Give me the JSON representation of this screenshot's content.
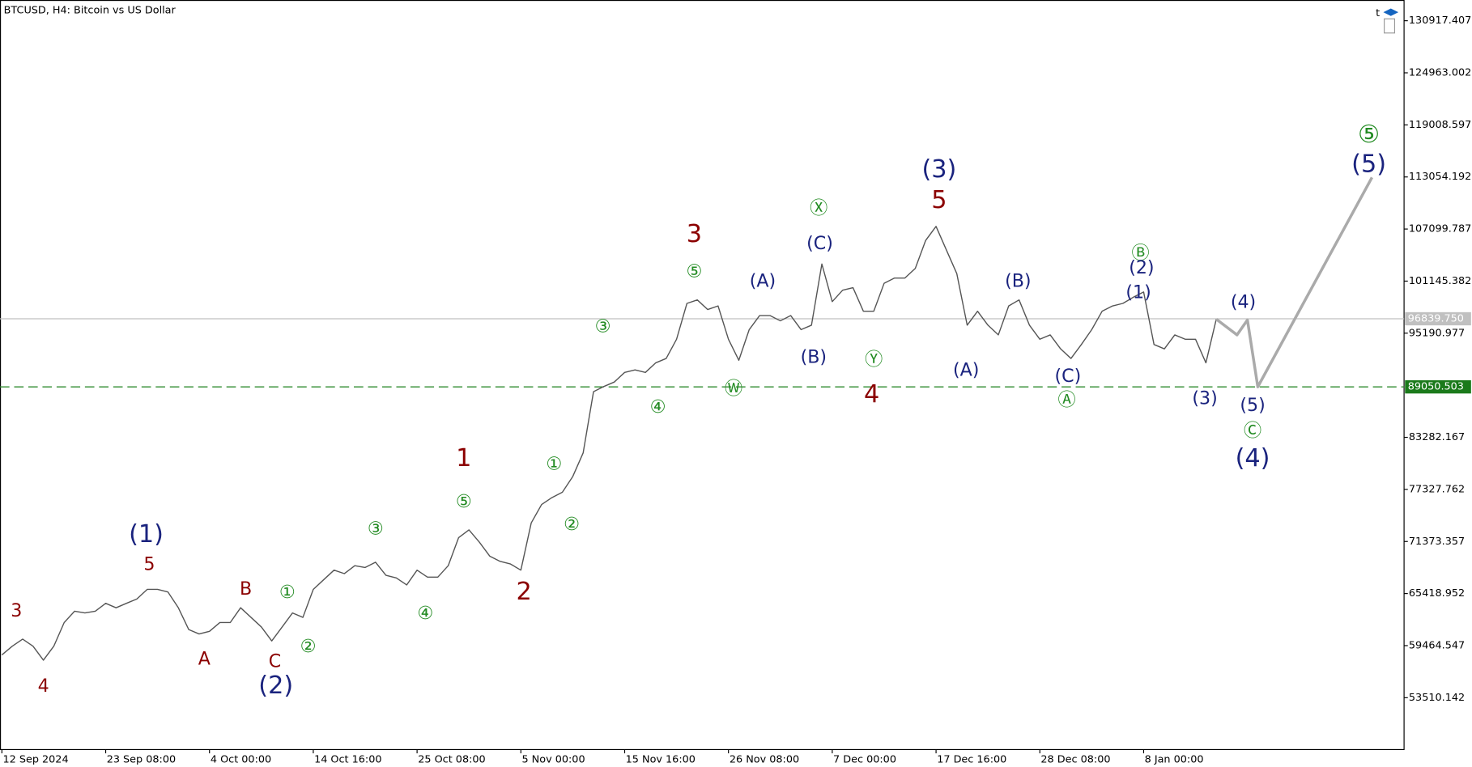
{
  "chart_data": {
    "type": "line",
    "title": "BTCUSD, H4:  Bitcoin vs US Dollar",
    "toolbar_text": "t",
    "xlim": [
      -0.182,
      135.09
    ],
    "ylim": [
      47580,
      133289
    ],
    "xticks": [
      {
        "value": 0,
        "label": "12 Sep 2024"
      },
      {
        "value": 10,
        "label": "23 Sep 08:00"
      },
      {
        "value": 20,
        "label": "4 Oct 00:00"
      },
      {
        "value": 30,
        "label": "14 Oct 16:00"
      },
      {
        "value": 40,
        "label": "25 Oct 08:00"
      },
      {
        "value": 50,
        "label": "5 Nov 00:00"
      },
      {
        "value": 60,
        "label": "15 Nov 16:00"
      },
      {
        "value": 70,
        "label": "26 Nov 08:00"
      },
      {
        "value": 80,
        "label": "7 Dec 00:00"
      },
      {
        "value": 90,
        "label": "17 Dec 16:00"
      },
      {
        "value": 100,
        "label": "28 Dec 08:00"
      },
      {
        "value": 110,
        "label": "8 Jan 00:00"
      }
    ],
    "yticks": [
      130917.407,
      124963.002,
      119008.597,
      113054.192,
      107099.787,
      101145.382,
      95190.977,
      83282.167,
      77327.762,
      71373.357,
      65418.952,
      59464.547,
      53510.142
    ],
    "current_price": {
      "value": 96839.75,
      "label": "96839.750"
    },
    "level": 89050.503,
    "series": [
      {
        "name": "BTCUSD",
        "color": "#555555",
        "x": [
          0,
          1,
          2,
          3,
          4,
          5,
          6,
          7,
          8,
          9,
          10,
          11,
          12,
          13,
          14,
          15,
          16,
          17,
          18,
          19,
          20,
          21,
          22,
          23,
          24,
          25,
          26,
          27,
          28,
          29,
          30,
          31,
          32,
          33,
          34,
          35,
          36,
          37,
          38,
          39,
          40,
          41,
          42,
          43,
          44,
          45,
          46,
          47,
          48,
          49,
          50,
          51,
          52,
          53,
          54,
          55,
          56,
          57,
          58,
          59,
          60,
          61,
          62,
          63,
          64,
          65,
          66,
          67,
          68,
          69,
          70,
          71,
          72,
          73,
          74,
          75,
          76,
          77,
          78,
          79,
          80,
          81,
          82,
          83,
          84,
          85,
          86,
          87,
          88,
          89,
          90,
          91,
          92,
          93,
          94,
          95,
          96,
          97,
          98,
          99,
          100,
          101,
          102,
          103,
          104,
          105,
          106,
          107,
          108,
          109,
          110,
          111,
          112,
          113,
          114,
          115,
          116,
          117
        ],
        "values": [
          58400,
          59400,
          60200,
          59400,
          57800,
          59400,
          62100,
          63400,
          63200,
          63400,
          64300,
          63800,
          64300,
          64800,
          65900,
          65900,
          65600,
          63800,
          61300,
          60800,
          61100,
          62100,
          62100,
          63800,
          62700,
          61600,
          60000,
          61600,
          63200,
          62700,
          65900,
          67000,
          68100,
          67700,
          68600,
          68400,
          69000,
          67500,
          67200,
          66400,
          68100,
          67300,
          67300,
          68600,
          71800,
          72700,
          71300,
          69700,
          69100,
          68800,
          68100,
          73500,
          75600,
          76400,
          77000,
          78800,
          81500,
          88500,
          89100,
          89600,
          90700,
          91000,
          90700,
          91800,
          92300,
          94500,
          98600,
          99000,
          97900,
          98300,
          94500,
          92100,
          95600,
          97200,
          97200,
          96600,
          97200,
          95600,
          96100,
          103100,
          98800,
          100100,
          100400,
          97700,
          97700,
          100900,
          101500,
          101500,
          102600,
          105800,
          107400,
          104700,
          102000,
          96100,
          97700,
          96100,
          95000,
          98300,
          99000,
          96100,
          94500,
          95000,
          93400,
          92300,
          93900,
          95600,
          97700,
          98300,
          98600,
          99300,
          99900,
          93900,
          93400,
          95000,
          94500,
          94500,
          91800,
          96800
        ]
      },
      {
        "name": "Projection",
        "color": "#aaaaaa",
        "x": [
          117,
          119,
          120,
          121,
          132
        ],
        "values": [
          96800,
          95000,
          96700,
          89050,
          113000
        ]
      }
    ],
    "annotations": [
      {
        "text": "3",
        "x": 1.4,
        "y": 63400,
        "color": "#8b0000",
        "size": "medium"
      },
      {
        "text": "4",
        "x": 4.0,
        "y": 54800,
        "color": "#8b0000",
        "size": "medium"
      },
      {
        "text": "5",
        "x": 14.2,
        "y": 68700,
        "color": "#8b0000",
        "size": "medium"
      },
      {
        "text": "(1)",
        "x": 13.9,
        "y": 72100,
        "color": "#1a237e",
        "size": "large"
      },
      {
        "text": "A",
        "x": 19.5,
        "y": 57900,
        "color": "#8b0000",
        "size": "medium"
      },
      {
        "text": "B",
        "x": 23.5,
        "y": 65900,
        "color": "#8b0000",
        "size": "medium"
      },
      {
        "text": "C",
        "x": 26.3,
        "y": 57600,
        "color": "#8b0000",
        "size": "medium"
      },
      {
        "text": "(2)",
        "x": 26.4,
        "y": 54800,
        "color": "#1a237e",
        "size": "large"
      },
      {
        "text": "①",
        "x": 27.5,
        "y": 65500,
        "color": "#228b22",
        "size": "medium"
      },
      {
        "text": "②",
        "x": 29.5,
        "y": 59300,
        "color": "#228b22",
        "size": "medium"
      },
      {
        "text": "③",
        "x": 36.0,
        "y": 72800,
        "color": "#228b22",
        "size": "medium"
      },
      {
        "text": "④",
        "x": 40.8,
        "y": 63100,
        "color": "#228b22",
        "size": "medium"
      },
      {
        "text": "⑤",
        "x": 44.5,
        "y": 75900,
        "color": "#228b22",
        "size": "medium"
      },
      {
        "text": "1",
        "x": 44.5,
        "y": 80800,
        "color": "#8b0000",
        "size": "large"
      },
      {
        "text": "2",
        "x": 50.3,
        "y": 65500,
        "color": "#8b0000",
        "size": "large"
      },
      {
        "text": "①",
        "x": 53.2,
        "y": 80200,
        "color": "#228b22",
        "size": "medium"
      },
      {
        "text": "②",
        "x": 54.9,
        "y": 73300,
        "color": "#228b22",
        "size": "medium"
      },
      {
        "text": "③",
        "x": 57.9,
        "y": 95900,
        "color": "#228b22",
        "size": "medium"
      },
      {
        "text": "④",
        "x": 63.2,
        "y": 86700,
        "color": "#228b22",
        "size": "medium"
      },
      {
        "text": "⑤",
        "x": 66.7,
        "y": 102200,
        "color": "#228b22",
        "size": "medium"
      },
      {
        "text": "3",
        "x": 66.7,
        "y": 106400,
        "color": "#8b0000",
        "size": "large"
      },
      {
        "text": "Ⓦ",
        "x": 70.5,
        "y": 88800,
        "color": "#228b22",
        "size": "medium"
      },
      {
        "text": "(A)",
        "x": 73.3,
        "y": 101100,
        "color": "#1a237e",
        "size": "medium"
      },
      {
        "text": "(C)",
        "x": 78.8,
        "y": 105400,
        "color": "#1a237e",
        "size": "medium"
      },
      {
        "text": "Ⓧ",
        "x": 78.7,
        "y": 109400,
        "color": "#228b22",
        "size": "medium"
      },
      {
        "text": "(B)",
        "x": 78.2,
        "y": 92400,
        "color": "#1a237e",
        "size": "medium"
      },
      {
        "text": "Ⓨ",
        "x": 84.0,
        "y": 92100,
        "color": "#228b22",
        "size": "medium"
      },
      {
        "text": "4",
        "x": 83.8,
        "y": 88100,
        "color": "#8b0000",
        "size": "large"
      },
      {
        "text": "(3)",
        "x": 90.3,
        "y": 113800,
        "color": "#1a237e",
        "size": "large"
      },
      {
        "text": "5",
        "x": 90.3,
        "y": 110300,
        "color": "#8b0000",
        "size": "large"
      },
      {
        "text": "(A)",
        "x": 92.9,
        "y": 90900,
        "color": "#1a237e",
        "size": "medium"
      },
      {
        "text": "(B)",
        "x": 97.9,
        "y": 101100,
        "color": "#1a237e",
        "size": "medium"
      },
      {
        "text": "(C)",
        "x": 102.7,
        "y": 90200,
        "color": "#1a237e",
        "size": "medium"
      },
      {
        "text": "Ⓐ",
        "x": 102.6,
        "y": 87500,
        "color": "#228b22",
        "size": "medium"
      },
      {
        "text": "Ⓑ",
        "x": 109.7,
        "y": 104300,
        "color": "#228b22",
        "size": "medium"
      },
      {
        "text": "(2)",
        "x": 109.8,
        "y": 102600,
        "color": "#1a237e",
        "size": "medium"
      },
      {
        "text": "(1)",
        "x": 109.5,
        "y": 99800,
        "color": "#1a237e",
        "size": "medium"
      },
      {
        "text": "(3)",
        "x": 115.9,
        "y": 87700,
        "color": "#1a237e",
        "size": "medium"
      },
      {
        "text": "(4)",
        "x": 119.6,
        "y": 98700,
        "color": "#1a237e",
        "size": "medium"
      },
      {
        "text": "(5)",
        "x": 120.5,
        "y": 86900,
        "color": "#1a237e",
        "size": "medium"
      },
      {
        "text": "Ⓒ",
        "x": 120.5,
        "y": 84000,
        "color": "#228b22",
        "size": "medium"
      },
      {
        "text": "(4)",
        "x": 120.5,
        "y": 80800,
        "color": "#1a237e",
        "size": "large"
      },
      {
        "text": "⑤",
        "x": 131.7,
        "y": 117800,
        "color": "#228b22",
        "size": "large"
      },
      {
        "text": "(5)",
        "x": 131.7,
        "y": 114400,
        "color": "#1a237e",
        "size": "large"
      }
    ]
  }
}
